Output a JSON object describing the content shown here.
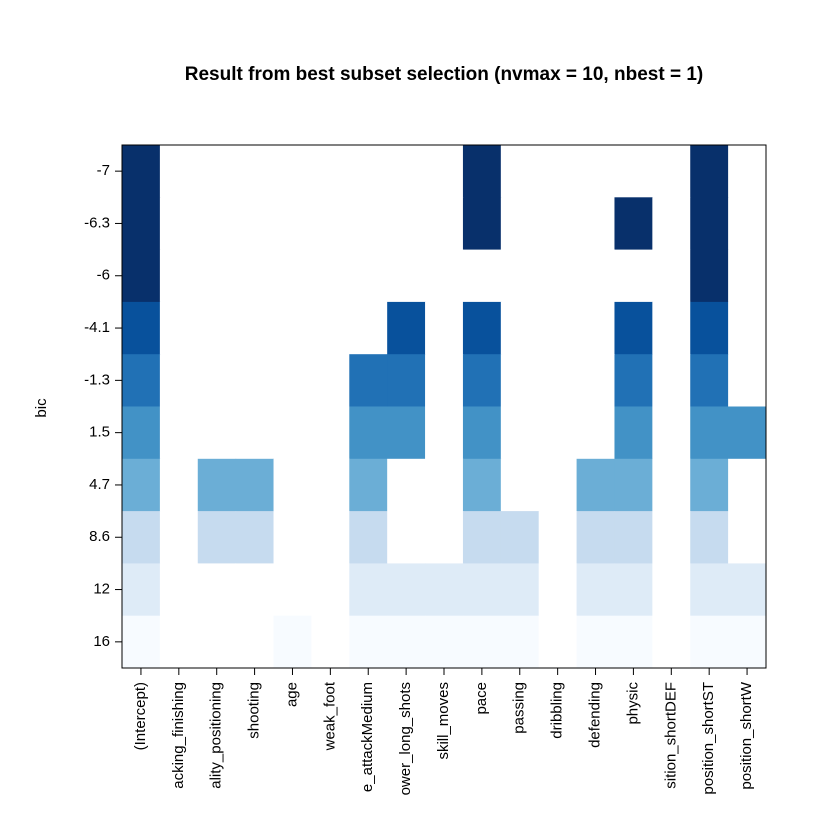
{
  "chart_data": {
    "type": "heatmap",
    "title": "Result from best subset selection (nvmax = 10, nbest = 1)",
    "y_label": "bic",
    "rows": [
      -7,
      -6.3,
      -6,
      -4.1,
      -1.3,
      1.5,
      4.7,
      8.6,
      12,
      16
    ],
    "columns": [
      "(Intercept)",
      "acking_finishing",
      "ality_positioning",
      "shooting",
      "age",
      "weak_foot",
      "e_attackMedium",
      "ower_long_shots",
      "skill_moves",
      "pace",
      "passing",
      "dribbling",
      "defending",
      "physic",
      "sition_shortDEF",
      "position_shortST",
      "position_shortW"
    ],
    "row_colors": [
      "#08306b",
      "#08306b",
      "#08306b",
      "#08519c",
      "#2171b5",
      "#4292c6",
      "#6baed6",
      "#c6dbef",
      "#deebf7",
      "#f7fbff"
    ],
    "matrix": [
      [
        1,
        0,
        0,
        0,
        0,
        0,
        0,
        0,
        0,
        1,
        0,
        0,
        0,
        0,
        0,
        1,
        0
      ],
      [
        1,
        0,
        0,
        0,
        0,
        0,
        0,
        0,
        0,
        1,
        0,
        0,
        0,
        1,
        0,
        1,
        0
      ],
      [
        1,
        0,
        0,
        0,
        0,
        0,
        0,
        0,
        0,
        0,
        0,
        0,
        0,
        0,
        0,
        1,
        0
      ],
      [
        1,
        0,
        0,
        0,
        0,
        0,
        0,
        1,
        0,
        1,
        0,
        0,
        0,
        1,
        0,
        1,
        0
      ],
      [
        1,
        0,
        0,
        0,
        0,
        0,
        1,
        1,
        0,
        1,
        0,
        0,
        0,
        1,
        0,
        1,
        0
      ],
      [
        1,
        0,
        0,
        0,
        0,
        0,
        1,
        1,
        0,
        1,
        0,
        0,
        0,
        1,
        0,
        1,
        1
      ],
      [
        1,
        0,
        1,
        1,
        0,
        0,
        1,
        0,
        0,
        1,
        0,
        0,
        1,
        1,
        0,
        1,
        0
      ],
      [
        1,
        0,
        1,
        1,
        0,
        0,
        1,
        0,
        0,
        1,
        1,
        0,
        1,
        1,
        0,
        1,
        0
      ],
      [
        1,
        0,
        0,
        0,
        0,
        0,
        1,
        1,
        1,
        1,
        1,
        0,
        1,
        1,
        0,
        1,
        1
      ],
      [
        1,
        0,
        0,
        0,
        1,
        0,
        1,
        1,
        1,
        1,
        1,
        0,
        1,
        1,
        0,
        1,
        1
      ]
    ]
  }
}
